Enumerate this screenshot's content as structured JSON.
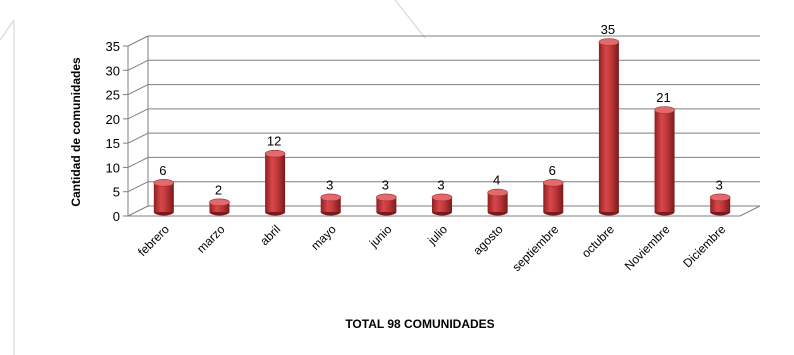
{
  "chart_data": {
    "type": "bar",
    "title": "",
    "xlabel": "TOTAL 98 COMUNIDADES",
    "ylabel": "Cantidad de comunidades",
    "categories": [
      "febrero",
      "marzo",
      "abril",
      "mayo",
      "junio",
      "julio",
      "agosto",
      "septiembre",
      "octubre",
      "Noviembre",
      "Diciembre"
    ],
    "values": [
      6,
      2,
      12,
      3,
      3,
      3,
      4,
      6,
      35,
      21,
      3
    ],
    "ylim": [
      0,
      35
    ],
    "yticks": [
      0,
      5,
      10,
      15,
      20,
      25,
      30,
      35
    ],
    "grid": true,
    "legend": "none",
    "bar_color": "#c0393b"
  }
}
